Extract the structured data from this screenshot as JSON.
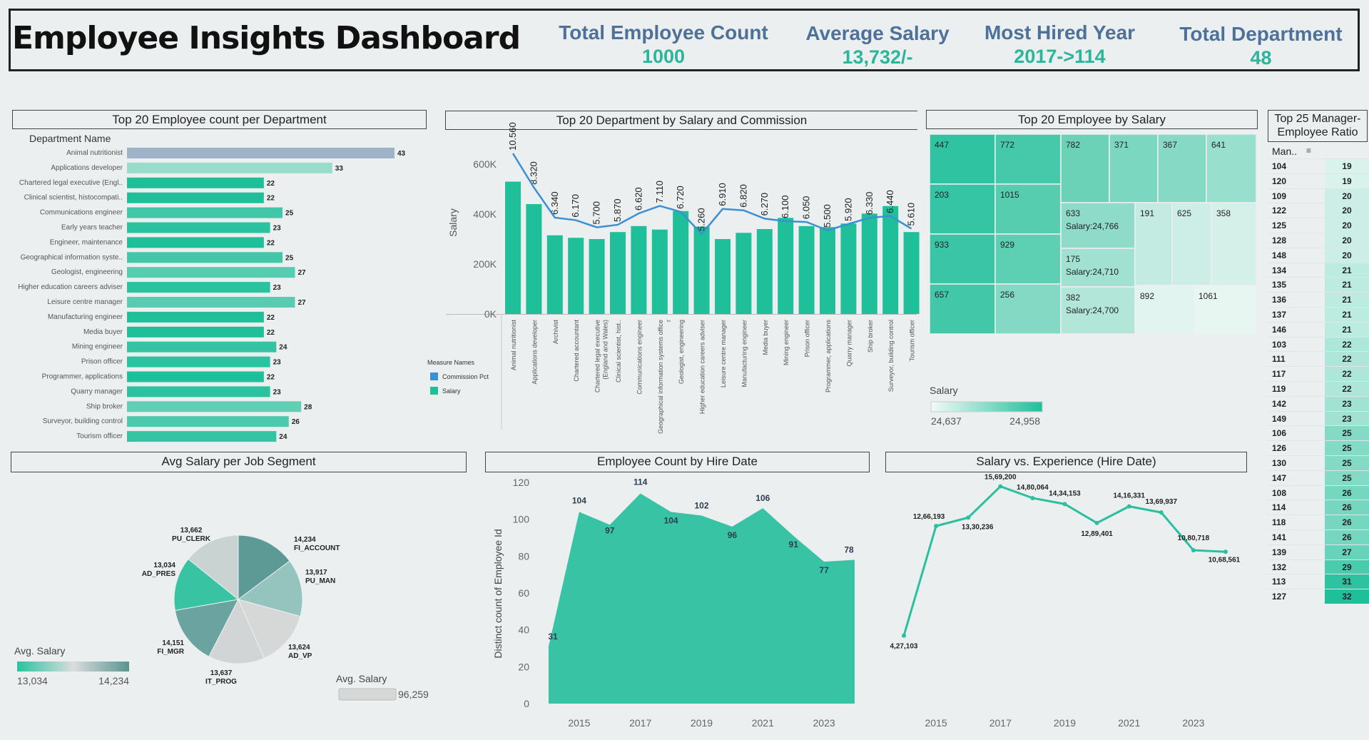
{
  "header": {
    "title": "Employee Insights Dashboard",
    "kpis": [
      {
        "label": "Total Employee Count",
        "value": "1000"
      },
      {
        "label": "Average Salary",
        "value": "13,732/-"
      },
      {
        "label": "Most Hired Year",
        "value": "2017->114"
      },
      {
        "label": "Total Department",
        "value": "48"
      }
    ]
  },
  "panels": {
    "dept_count": "Top 20 Employee count per Department",
    "dept_salary": "Top 20 Department by Salary and Commission",
    "emp_salary": "Top 20 Employee by Salary",
    "mgr_ratio": "Top 25 Manager-Employee Ratio",
    "job_segment": "Avg Salary per Job Segment",
    "hire_date": "Employee Count by Hire Date",
    "salary_exp": "Salary vs. Experience (Hire Date)"
  },
  "colors": {
    "accent": "#1fbf9a",
    "kpi_label": "#4e7199",
    "kpi_value": "#2bb59b",
    "commission": "#3b8fd4"
  },
  "chart_data": [
    {
      "type": "bar",
      "orientation": "horizontal",
      "title": "Top 20 Employee count per Department",
      "column_header": "Department Name",
      "categories": [
        "Animal nutritionist",
        "Applications developer",
        "Chartered legal executive (Engl..",
        "Clinical scientist, histocompati..",
        "Communications engineer",
        "Early years teacher",
        "Engineer, maintenance",
        "Geographical information syste..",
        "Geologist, engineering",
        "Higher education careers adviser",
        "Leisure centre manager",
        "Manufacturing engineer",
        "Media buyer",
        "Mining engineer",
        "Prison officer",
        "Programmer, applications",
        "Quarry manager",
        "Ship broker",
        "Surveyor, building control",
        "Tourism officer"
      ],
      "values": [
        43,
        33,
        22,
        22,
        25,
        23,
        22,
        25,
        27,
        23,
        27,
        22,
        22,
        24,
        23,
        22,
        23,
        28,
        26,
        24
      ]
    },
    {
      "type": "bar",
      "title": "Top 20 Department by Salary and Commission",
      "ylabel": "Salary",
      "yticks": [
        "0K",
        "200K",
        "400K",
        "600K"
      ],
      "ylim": [
        0,
        700000
      ],
      "legend_title": "Measure Names",
      "legend": [
        "Commission Pct",
        "Salary"
      ],
      "categories": [
        "Animal nutritionist",
        "Applications developer",
        "Archivist",
        "Chartered accountant",
        "Chartered legal executive (England and Wales)",
        "Clinical scientist, hist..",
        "Communications engineer",
        "Geographical information systems officer",
        "Geologist, engineering",
        "Higher education careers adviser",
        "Leisure centre manager",
        "Manufacturing engineer",
        "Media buyer",
        "Mining engineer",
        "Prison officer",
        "Programmer, applications",
        "Quarry manager",
        "Ship broker",
        "Surveyor, building control",
        "Tourism officer"
      ],
      "series": [
        {
          "name": "Salary",
          "values": [
            530000,
            440000,
            315000,
            305000,
            300000,
            328000,
            352000,
            338000,
            412000,
            350000,
            300000,
            325000,
            340000,
            385000,
            352000,
            348000,
            362000,
            402000,
            432000,
            328000
          ]
        },
        {
          "name": "Commission Pct",
          "values": [
            10.56,
            8.32,
            6.34,
            6.17,
            5.7,
            5.87,
            6.62,
            7.11,
            6.72,
            5.26,
            6.91,
            6.82,
            6.27,
            6.1,
            6.05,
            5.5,
            5.92,
            6.33,
            6.44,
            5.61
          ]
        }
      ],
      "labels": [
        "10.560",
        "8.320",
        "6.340",
        "6.170",
        "5.700",
        "5.870",
        "6.620",
        "7.110",
        "6.720",
        "5.260",
        "6.910",
        "6.820",
        "6.270",
        "6.100",
        "6.050",
        "5.500",
        "5.920",
        "6.330",
        "6.440",
        "5.610"
      ]
    },
    {
      "type": "treemap",
      "title": "Top 20 Employee by Salary",
      "legend_title": "Salary",
      "legend_range": [
        "24,637",
        "24,958"
      ],
      "items": [
        {
          "id": "447"
        },
        {
          "id": "772"
        },
        {
          "id": "203"
        },
        {
          "id": "1015"
        },
        {
          "id": "933"
        },
        {
          "id": "929"
        },
        {
          "id": "657"
        },
        {
          "id": "256"
        },
        {
          "id": "782"
        },
        {
          "id": "371"
        },
        {
          "id": "367"
        },
        {
          "id": "641"
        },
        {
          "id": "633",
          "salary_label": "Salary:24,766"
        },
        {
          "id": "175",
          "salary_label": "Salary:24,710"
        },
        {
          "id": "382",
          "salary_label": "Salary:24,700"
        },
        {
          "id": "191"
        },
        {
          "id": "625"
        },
        {
          "id": "358"
        },
        {
          "id": "892"
        },
        {
          "id": "1061"
        }
      ]
    },
    {
      "type": "table",
      "title": "Top 25 Manager-Employee Ratio",
      "column_header": "Man..",
      "rows": [
        [
          "104",
          19
        ],
        [
          "120",
          19
        ],
        [
          "109",
          20
        ],
        [
          "122",
          20
        ],
        [
          "125",
          20
        ],
        [
          "128",
          20
        ],
        [
          "148",
          20
        ],
        [
          "134",
          21
        ],
        [
          "135",
          21
        ],
        [
          "136",
          21
        ],
        [
          "137",
          21
        ],
        [
          "146",
          21
        ],
        [
          "103",
          22
        ],
        [
          "111",
          22
        ],
        [
          "117",
          22
        ],
        [
          "119",
          22
        ],
        [
          "142",
          23
        ],
        [
          "149",
          23
        ],
        [
          "106",
          25
        ],
        [
          "126",
          25
        ],
        [
          "130",
          25
        ],
        [
          "147",
          25
        ],
        [
          "108",
          26
        ],
        [
          "114",
          26
        ],
        [
          "118",
          26
        ],
        [
          "141",
          26
        ],
        [
          "139",
          27
        ],
        [
          "132",
          29
        ],
        [
          "113",
          31
        ],
        [
          "127",
          32
        ]
      ]
    },
    {
      "type": "pie",
      "title": "Avg Salary per Job Segment",
      "legend_title": "Avg. Salary",
      "legend_range": [
        "13,034",
        "14,234"
      ],
      "size_legend_title": "Avg. Salary",
      "size_legend_value": "96,259",
      "slices": [
        {
          "name": "FI_ACCOUNT",
          "label": "14,234",
          "value": 14234
        },
        {
          "name": "PU_MAN",
          "label": "13,917",
          "value": 13917
        },
        {
          "name": "AD_VP",
          "label": "13,624",
          "value": 13624
        },
        {
          "name": "IT_PROG",
          "label": "13,637",
          "value": 13637
        },
        {
          "name": "FI_MGR",
          "label": "14,151",
          "value": 14151
        },
        {
          "name": "AD_PRES",
          "label": "13,034",
          "value": 13034
        },
        {
          "name": "PU_CLERK",
          "label": "13,662",
          "value": 13662
        }
      ]
    },
    {
      "type": "area",
      "title": "Employee Count by Hire Date",
      "ylabel": "Distinct count of Employee Id",
      "ylim": [
        0,
        120
      ],
      "yticks": [
        0,
        20,
        40,
        60,
        80,
        100,
        120
      ],
      "xticks": [
        "2015",
        "2017",
        "2019",
        "2021",
        "2023"
      ],
      "x": [
        2014,
        2015,
        2016,
        2017,
        2018,
        2019,
        2020,
        2021,
        2022,
        2023,
        2024
      ],
      "values": [
        31,
        104,
        97,
        114,
        104,
        102,
        96,
        106,
        91,
        77,
        78
      ]
    },
    {
      "type": "line",
      "title": "Salary vs. Experience (Hire Date)",
      "xticks": [
        "2015",
        "2017",
        "2019",
        "2021",
        "2023"
      ],
      "x": [
        2014,
        2015,
        2016,
        2017,
        2018,
        2019,
        2020,
        2021,
        2022,
        2023,
        2024
      ],
      "values": [
        427103,
        1266193,
        1330236,
        1569200,
        1480064,
        1434153,
        1289401,
        1416331,
        1369937,
        1080718,
        1068561
      ],
      "labels": [
        "4,27,103",
        "12,66,193",
        "13,30,236",
        "15,69,200",
        "14,80,064",
        "14,34,153",
        "12,89,401",
        "14,16,331",
        "13,69,937",
        "10,80,718",
        "10,68,561"
      ]
    }
  ]
}
